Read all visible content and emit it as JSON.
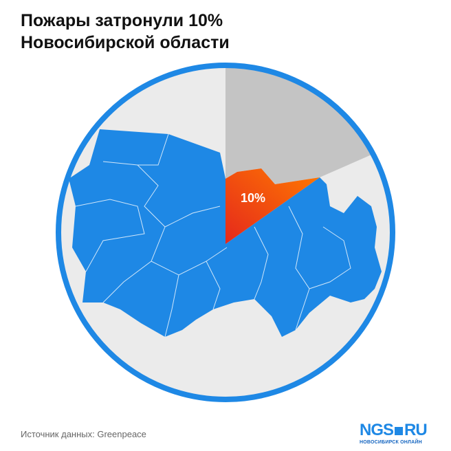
{
  "header": {
    "title_line1": "Пожары затронули 10%",
    "title_line2": "Новосибирской области"
  },
  "map": {
    "highlight_label": "10%"
  },
  "footer": {
    "source": "Источник данных: Greenpeace",
    "logo_main": "NGS",
    "logo_tld": "RU",
    "logo_sub": "НОВОСИБИРСК ОНЛАЙН"
  }
}
